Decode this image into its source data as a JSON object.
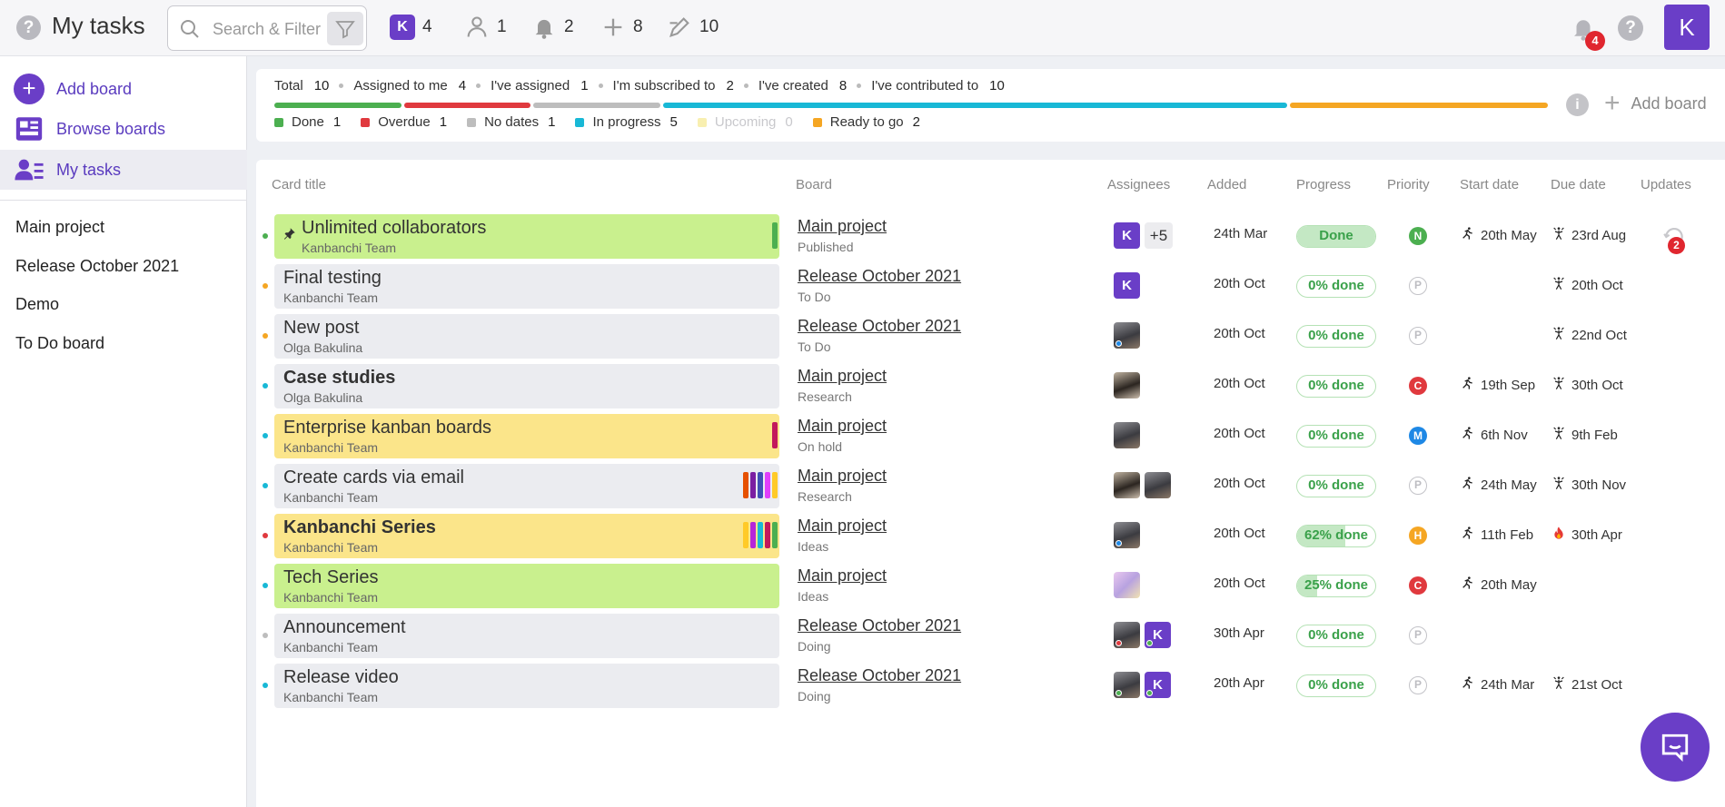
{
  "header": {
    "title": "My tasks",
    "search_placeholder": "Search & Filter",
    "stats": [
      {
        "icon": "k-badge-icon",
        "letter": "K",
        "value": "4"
      },
      {
        "icon": "person-assigned-icon",
        "value": "1"
      },
      {
        "icon": "bell-subscribed-icon",
        "value": "2"
      },
      {
        "icon": "plus-created-icon",
        "value": "8"
      },
      {
        "icon": "pencil-contributed-icon",
        "value": "10"
      }
    ],
    "notifications_count": "4",
    "user_initial": "K"
  },
  "sidebar": {
    "actions": [
      {
        "label": "Add board",
        "icon": "plus-circle-icon"
      },
      {
        "label": "Browse boards",
        "icon": "boards-grid-icon"
      },
      {
        "label": "My tasks",
        "icon": "my-tasks-icon",
        "active": true
      }
    ],
    "boards": [
      "Main project",
      "Release October 2021",
      "Demo",
      "To Do board"
    ]
  },
  "summary": {
    "counts": [
      {
        "label": "Total",
        "value": "10"
      },
      {
        "label": "Assigned to me",
        "value": "4"
      },
      {
        "label": "I've assigned",
        "value": "1"
      },
      {
        "label": "I'm subscribed to",
        "value": "2"
      },
      {
        "label": "I've created",
        "value": "8"
      },
      {
        "label": "I've contributed to",
        "value": "10"
      }
    ],
    "legend": [
      {
        "label": "Done",
        "value": "1",
        "color": "#4caf50"
      },
      {
        "label": "Overdue",
        "value": "1",
        "color": "#e0393e"
      },
      {
        "label": "No dates",
        "value": "1",
        "color": "#bdbdbd"
      },
      {
        "label": "In progress",
        "value": "5",
        "color": "#18b8d6"
      },
      {
        "label": "Upcoming",
        "value": "0",
        "color": "#f8efb0",
        "muted": true
      },
      {
        "label": "Ready to go",
        "value": "2",
        "color": "#f5a623"
      }
    ],
    "add_board_label": "Add board"
  },
  "table": {
    "headers": {
      "title": "Card title",
      "board": "Board",
      "assignees": "Assignees",
      "added": "Added",
      "progress": "Progress",
      "priority": "Priority",
      "start": "Start date",
      "due": "Due date",
      "updates": "Updates"
    },
    "rows": [
      {
        "title": "Unlimited collaborators",
        "author": "Kanbanchi Team",
        "bold": false,
        "pinned": true,
        "bg": "#c9f08e",
        "dot": "#4caf50",
        "tags": [
          "#4caf50"
        ],
        "board": "Main project",
        "list": "Published",
        "assignees": [
          {
            "type": "k",
            "letter": "K"
          }
        ],
        "more": "+5",
        "added": "24th Mar",
        "progress": "Done",
        "progress_pct": 1,
        "priority": "N",
        "priority_color": "#4caf50",
        "start": "20th May",
        "due": "23rd Aug",
        "due_icon": "runner-icon",
        "updates": "2"
      },
      {
        "title": "Final testing",
        "author": "Kanbanchi Team",
        "bold": false,
        "bg": "#ebecf0",
        "dot": "#f5a623",
        "tags": [],
        "board": "Release October 2021",
        "list": "To Do",
        "assignees": [
          {
            "type": "k",
            "letter": "K"
          }
        ],
        "added": "20th Oct",
        "progress": "0% done",
        "progress_pct": 0,
        "priority": "P",
        "start": "",
        "due": "20th Oct",
        "due_icon": "runner-icon"
      },
      {
        "title": "New post",
        "author": "Olga Bakulina",
        "bold": false,
        "bg": "#ebecf0",
        "dot": "#f5a623",
        "tags": [],
        "board": "Release October 2021",
        "list": "To Do",
        "assignees": [
          {
            "type": "p",
            "status": "#1e88e5"
          }
        ],
        "added": "20th Oct",
        "progress": "0% done",
        "progress_pct": 0,
        "priority": "P",
        "start": "",
        "due": "22nd Oct",
        "due_icon": "runner-icon"
      },
      {
        "title": "Case studies",
        "author": "Olga Bakulina",
        "bold": true,
        "bg": "#ebecf0",
        "dot": "#18b8d6",
        "tags": [],
        "board": "Main project",
        "list": "Research",
        "assignees": [
          {
            "type": "p2"
          }
        ],
        "added": "20th Oct",
        "progress": "0% done",
        "progress_pct": 0,
        "priority": "C",
        "priority_color": "#e0393e",
        "start": "19th Sep",
        "due": "30th Oct",
        "due_icon": "runner-icon"
      },
      {
        "title": "Enterprise kanban boards",
        "author": "Kanbanchi Team",
        "bold": false,
        "bg": "#fbe58a",
        "dot": "#18b8d6",
        "tags": [
          "#c2185b"
        ],
        "board": "Main project",
        "list": "On hold",
        "assignees": [
          {
            "type": "p"
          }
        ],
        "added": "20th Oct",
        "progress": "0% done",
        "progress_pct": 0,
        "priority": "M",
        "priority_color": "#1e88e5",
        "start": "6th Nov",
        "due": "9th Feb",
        "due_icon": "runner-icon"
      },
      {
        "title": "Create cards via email",
        "author": "Kanbanchi Team",
        "bold": false,
        "bg": "#ebecf0",
        "dot": "#18b8d6",
        "tags": [
          "#e65100",
          "#7b1fa2",
          "#3f51b5",
          "#e040fb",
          "#ffca28"
        ],
        "board": "Main project",
        "list": "Research",
        "assignees": [
          {
            "type": "p2"
          },
          {
            "type": "p"
          }
        ],
        "added": "20th Oct",
        "progress": "0% done",
        "progress_pct": 0,
        "priority": "P",
        "start": "24th May",
        "due": "30th Nov",
        "due_icon": "runner-icon"
      },
      {
        "title": "Kanbanchi Series",
        "author": "Kanbanchi Team",
        "bold": true,
        "bg": "#fbe58a",
        "dot": "#e0393e",
        "tags": [
          "#ffca28",
          "#b626d9",
          "#18b8d6",
          "#c2185b",
          "#4caf50"
        ],
        "board": "Main project",
        "list": "Ideas",
        "assignees": [
          {
            "type": "p",
            "status": "#1e88e5"
          }
        ],
        "added": "20th Oct",
        "progress": "62% done",
        "progress_pct": 0.62,
        "priority": "H",
        "priority_color": "#f5a623",
        "start": "11th Feb",
        "due": "30th Apr",
        "due_icon": "fire-icon"
      },
      {
        "title": "Tech Series",
        "author": "Kanbanchi Team",
        "bold": false,
        "bg": "#c9f08e",
        "dot": "#18b8d6",
        "tags": [],
        "board": "Main project",
        "list": "Ideas",
        "assignees": [
          {
            "type": "m"
          }
        ],
        "added": "20th Oct",
        "progress": "25% done",
        "progress_pct": 0.25,
        "priority": "C",
        "priority_color": "#e0393e",
        "start": "20th May",
        "due": "",
        "due_icon": "runner-icon"
      },
      {
        "title": "Announcement",
        "author": "Kanbanchi Team",
        "bold": false,
        "bg": "#ebecf0",
        "dot": "#bdbdbd",
        "tags": [],
        "board": "Release October 2021",
        "list": "Doing",
        "assignees": [
          {
            "type": "p",
            "status": "#e0393e"
          },
          {
            "type": "k",
            "letter": "K",
            "status": "#4caf50"
          }
        ],
        "added": "30th Apr",
        "progress": "0% done",
        "progress_pct": 0,
        "priority": "P",
        "start": "",
        "due": "",
        "due_icon": "runner-icon"
      },
      {
        "title": "Release video",
        "author": "Kanbanchi Team",
        "bold": false,
        "bg": "#ebecf0",
        "dot": "#18b8d6",
        "tags": [],
        "board": "Release October 2021",
        "list": "Doing",
        "assignees": [
          {
            "type": "p",
            "status": "#4caf50"
          },
          {
            "type": "k",
            "letter": "K",
            "status": "#4caf50"
          }
        ],
        "added": "20th Apr",
        "progress": "0% done",
        "progress_pct": 0,
        "priority": "P",
        "start": "24th Mar",
        "due": "21st Oct",
        "due_icon": "runner-icon"
      }
    ]
  }
}
